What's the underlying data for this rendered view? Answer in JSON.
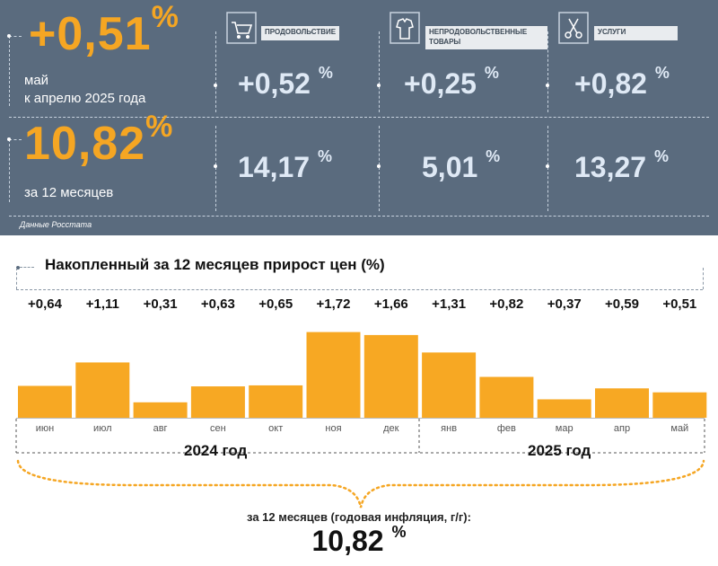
{
  "header": {
    "monthly_value": "+0,51",
    "percent": "%",
    "monthly_caption_1": "май",
    "monthly_caption_2": "к апрелю 2025 года",
    "annual_value": "10,82",
    "annual_caption": "за 12 месяцев",
    "source": "Данные Росстата"
  },
  "categories": [
    {
      "label": "ПРОДОВОЛЬСТВИЕ",
      "icon": "shopping-cart-icon",
      "monthly": "+0,52",
      "annual": "14,17"
    },
    {
      "label": "НЕПРОДОВОЛЬСТВЕННЫЕ ТОВАРЫ",
      "icon": "clothes-icon",
      "monthly": "+0,25",
      "annual": "5,01"
    },
    {
      "label": "УСЛУГИ",
      "icon": "scissors-icon",
      "monthly": "+0,82",
      "annual": "13,27"
    }
  ],
  "colors": {
    "panel": "#5a6b7e",
    "accent": "#f5a623",
    "bar": "#f7a823"
  },
  "chart_data": {
    "type": "bar",
    "title": "Накопленный за 12 месяцев прирост цен (%)",
    "categories": [
      "июн",
      "июл",
      "авг",
      "сен",
      "окт",
      "ноя",
      "дек",
      "янв",
      "фев",
      "мар",
      "апр",
      "май"
    ],
    "values": [
      0.64,
      1.11,
      0.31,
      0.63,
      0.65,
      1.72,
      1.66,
      1.31,
      0.82,
      0.37,
      0.59,
      0.51
    ],
    "value_labels": [
      "+0,64",
      "+1,11",
      "+0,31",
      "+0,63",
      "+0,65",
      "+1,72",
      "+1,66",
      "+1,31",
      "+0,82",
      "+0,37",
      "+0,59",
      "+0,51"
    ],
    "year_labels": [
      "2024 год",
      "2025 год"
    ],
    "ylim": [
      0,
      1.8
    ],
    "total_label": "за 12 месяцев (годовая инфляция, г/г):",
    "total_value": "10,82",
    "total_unit": "%"
  }
}
